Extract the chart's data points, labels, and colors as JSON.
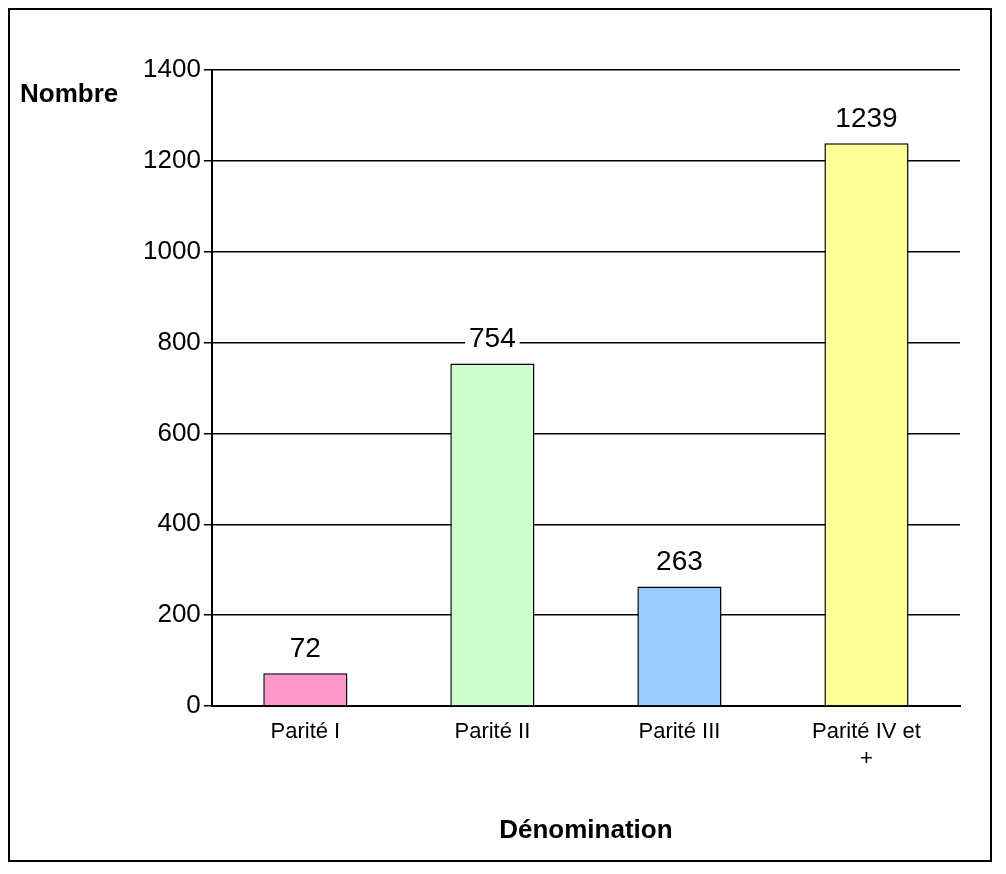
{
  "chart_data": {
    "type": "bar",
    "xlabel": "Dénomination",
    "ylabel": "Nombre",
    "categories": [
      "Parité I",
      "Parité II",
      "Parité III",
      "Parité IV et +"
    ],
    "values": [
      72,
      754,
      263,
      1239
    ],
    "colors": [
      "#ff99cc",
      "#ccffcc",
      "#99ccff",
      "#ffff99"
    ],
    "ylim": [
      0,
      1400
    ],
    "yticks": [
      0,
      200,
      400,
      600,
      800,
      1000,
      1200,
      1400
    ],
    "grid": "y",
    "data_labels": true,
    "legend": false
  }
}
